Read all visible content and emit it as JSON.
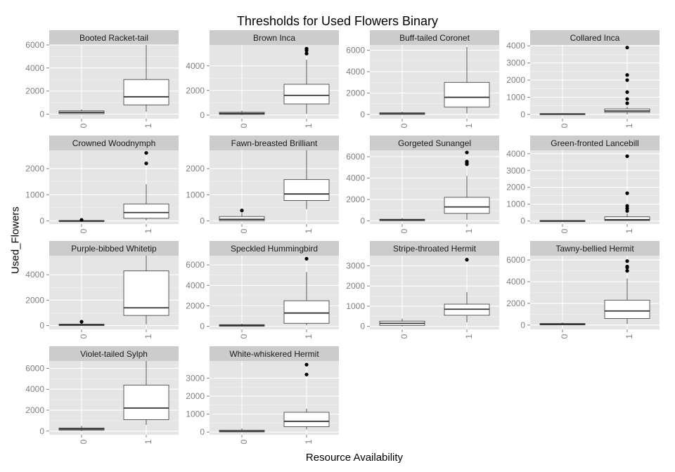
{
  "chart_data": {
    "type": "box",
    "title": "Thresholds for Used Flowers Binary",
    "xlabel": "Resource Availability",
    "ylabel": "Used_Flowers",
    "facet_scales": "free_y",
    "categories": [
      "0",
      "1"
    ],
    "colors": {
      "panel_bg": "#e5e5e5",
      "strip_bg": "#cccccc",
      "grid_major": "#ffffff",
      "grid_minor": "#f2f2f2",
      "tick_label": "#7f7f7f",
      "box_fill": "#ffffff",
      "box_line": "#333333",
      "outlier": "#000000"
    },
    "panels": [
      {
        "name": "Booted Racket-tail",
        "ylim": [
          -400,
          6000
        ],
        "yticks": [
          0,
          2000,
          4000,
          6000
        ],
        "boxes": [
          {
            "category": "0",
            "min": 0,
            "q1": 30,
            "median": 150,
            "q3": 280,
            "max": 400,
            "outliers": []
          },
          {
            "category": "1",
            "min": 200,
            "q1": 800,
            "median": 1500,
            "q3": 3000,
            "max": 6000,
            "outliers": []
          }
        ]
      },
      {
        "name": "Brown Inca",
        "ylim": [
          -300,
          5700
        ],
        "yticks": [
          0,
          2000,
          4000
        ],
        "boxes": [
          {
            "category": "0",
            "min": 0,
            "q1": 50,
            "median": 130,
            "q3": 220,
            "max": 350,
            "outliers": []
          },
          {
            "category": "1",
            "min": 100,
            "q1": 900,
            "median": 1600,
            "q3": 2500,
            "max": 4500,
            "outliers": [
              5000,
              5250,
              5400
            ]
          }
        ]
      },
      {
        "name": "Buff-tailed Coronet",
        "ylim": [
          -400,
          6500
        ],
        "yticks": [
          0,
          2000,
          4000,
          6000
        ],
        "boxes": [
          {
            "category": "0",
            "min": 0,
            "q1": 10,
            "median": 60,
            "q3": 150,
            "max": 250,
            "outliers": []
          },
          {
            "category": "1",
            "min": 100,
            "q1": 700,
            "median": 1600,
            "q3": 3000,
            "max": 6300,
            "outliers": []
          }
        ]
      },
      {
        "name": "Collared Inca",
        "ylim": [
          -250,
          4050
        ],
        "yticks": [
          0,
          1000,
          2000,
          3000,
          4000
        ],
        "boxes": [
          {
            "category": "0",
            "min": 0,
            "q1": 5,
            "median": 20,
            "q3": 50,
            "max": 80,
            "outliers": []
          },
          {
            "category": "1",
            "min": 0,
            "q1": 120,
            "median": 200,
            "q3": 320,
            "max": 450,
            "outliers": [
              650,
              900,
              1300,
              2000,
              2300,
              3900
            ]
          }
        ]
      },
      {
        "name": "Crowned Woodnymph",
        "ylim": [
          -120,
          2700
        ],
        "yticks": [
          0,
          1000,
          2000
        ],
        "boxes": [
          {
            "category": "0",
            "min": 0,
            "q1": 0,
            "median": 5,
            "q3": 15,
            "max": 25,
            "outliers": [
              40
            ]
          },
          {
            "category": "1",
            "min": 20,
            "q1": 100,
            "median": 320,
            "q3": 650,
            "max": 1400,
            "outliers": [
              2200,
              2600
            ]
          }
        ]
      },
      {
        "name": "Fawn-breasted Brilliant",
        "ylim": [
          -120,
          2700
        ],
        "yticks": [
          0,
          1000,
          2000
        ],
        "boxes": [
          {
            "category": "0",
            "min": 0,
            "q1": 10,
            "median": 60,
            "q3": 170,
            "max": 300,
            "outliers": [
              400
            ]
          },
          {
            "category": "1",
            "min": 450,
            "q1": 780,
            "median": 1030,
            "q3": 1580,
            "max": 2700,
            "outliers": []
          }
        ]
      },
      {
        "name": "Gorgeted Sunangel",
        "ylim": [
          -300,
          6600
        ],
        "yticks": [
          0,
          2000,
          4000,
          6000
        ],
        "boxes": [
          {
            "category": "0",
            "min": 0,
            "q1": 20,
            "median": 80,
            "q3": 150,
            "max": 250,
            "outliers": []
          },
          {
            "category": "1",
            "min": 100,
            "q1": 700,
            "median": 1300,
            "q3": 2200,
            "max": 4200,
            "outliers": [
              5300,
              5400,
              5550,
              6400
            ]
          }
        ]
      },
      {
        "name": "Green-fronted Lancebill",
        "ylim": [
          -180,
          4200
        ],
        "yticks": [
          0,
          1000,
          2000,
          3000,
          4000
        ],
        "boxes": [
          {
            "category": "0",
            "min": 0,
            "q1": 0,
            "median": 10,
            "q3": 30,
            "max": 50,
            "outliers": []
          },
          {
            "category": "1",
            "min": 0,
            "q1": 30,
            "median": 80,
            "q3": 250,
            "max": 450,
            "outliers": [
              600,
              750,
              900,
              1650,
              3850
            ]
          }
        ]
      },
      {
        "name": "Purple-bibbed Whitetip",
        "ylim": [
          -300,
          5500
        ],
        "yticks": [
          0,
          2000,
          4000
        ],
        "boxes": [
          {
            "category": "0",
            "min": 0,
            "q1": 10,
            "median": 50,
            "q3": 120,
            "max": 200,
            "outliers": [
              300
            ]
          },
          {
            "category": "1",
            "min": 100,
            "q1": 800,
            "median": 1400,
            "q3": 4300,
            "max": 5500,
            "outliers": []
          }
        ]
      },
      {
        "name": "Speckled Hummingbird",
        "ylim": [
          -300,
          6900
        ],
        "yticks": [
          0,
          2000,
          4000,
          6000
        ],
        "boxes": [
          {
            "category": "0",
            "min": 0,
            "q1": 20,
            "median": 80,
            "q3": 160,
            "max": 250,
            "outliers": []
          },
          {
            "category": "1",
            "min": 100,
            "q1": 300,
            "median": 1300,
            "q3": 2500,
            "max": 5300,
            "outliers": [
              6600
            ]
          }
        ]
      },
      {
        "name": "Stripe-throated Hermit",
        "ylim": [
          -150,
          3500
        ],
        "yticks": [
          0,
          1000,
          2000,
          3000
        ],
        "boxes": [
          {
            "category": "0",
            "min": 0,
            "q1": 50,
            "median": 150,
            "q3": 260,
            "max": 380,
            "outliers": []
          },
          {
            "category": "1",
            "min": 200,
            "q1": 550,
            "median": 850,
            "q3": 1100,
            "max": 1700,
            "outliers": [
              3300
            ]
          }
        ]
      },
      {
        "name": "Tawny-bellied Hermit",
        "ylim": [
          -400,
          6400
        ],
        "yticks": [
          0,
          2000,
          4000,
          6000
        ],
        "boxes": [
          {
            "category": "0",
            "min": 0,
            "q1": 20,
            "median": 70,
            "q3": 150,
            "max": 250,
            "outliers": []
          },
          {
            "category": "1",
            "min": 100,
            "q1": 600,
            "median": 1300,
            "q3": 2300,
            "max": 4300,
            "outliers": [
              5000,
              5300,
              5400,
              5900
            ]
          }
        ]
      },
      {
        "name": "Violet-tailed Sylph",
        "ylim": [
          -350,
          6700
        ],
        "yticks": [
          0,
          2000,
          4000,
          6000
        ],
        "boxes": [
          {
            "category": "0",
            "min": 0,
            "q1": 100,
            "median": 200,
            "q3": 300,
            "max": 500,
            "outliers": []
          },
          {
            "category": "1",
            "min": 600,
            "q1": 1100,
            "median": 2200,
            "q3": 4400,
            "max": 6700,
            "outliers": []
          }
        ]
      },
      {
        "name": "White-whiskered Hermit",
        "ylim": [
          -150,
          3950
        ],
        "yticks": [
          0,
          1000,
          2000,
          3000
        ],
        "boxes": [
          {
            "category": "0",
            "min": 0,
            "q1": 10,
            "median": 40,
            "q3": 100,
            "max": 200,
            "outliers": []
          },
          {
            "category": "1",
            "min": 150,
            "q1": 300,
            "median": 600,
            "q3": 1100,
            "max": 1300,
            "outliers": [
              3200,
              3750
            ]
          }
        ]
      }
    ]
  }
}
